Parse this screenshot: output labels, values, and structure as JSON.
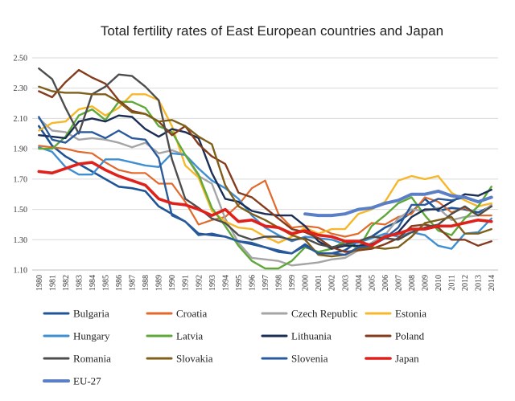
{
  "chart_data": {
    "type": "line",
    "title": "Total fertility rates of East European countries and Japan",
    "xlabel": "",
    "ylabel": "",
    "x": [
      "1980",
      "1981",
      "1982",
      "1983",
      "1984",
      "1985",
      "1986",
      "1987",
      "1988",
      "1989",
      "1990",
      "1991",
      "1992",
      "1993",
      "1994",
      "1995",
      "1996",
      "1997",
      "1998",
      "1999",
      "2000",
      "2001",
      "2002",
      "2003",
      "2004",
      "2005",
      "2006",
      "2007",
      "2008",
      "2009",
      "2010",
      "2011",
      "2012",
      "2013",
      "2014"
    ],
    "ylim": [
      1.1,
      2.5
    ],
    "yticks": [
      "1.10",
      "1.30",
      "1.50",
      "1.70",
      "1.90",
      "2.10",
      "2.30",
      "2.50"
    ],
    "grid": "horizontal",
    "legend_position": "bottom",
    "series": [
      {
        "name": "Bulgaria",
        "color": "#1f5597",
        "width": 2.6,
        "values": [
          2.05,
          1.92,
          1.85,
          1.8,
          1.75,
          1.7,
          1.65,
          1.64,
          1.62,
          1.52,
          1.47,
          1.42,
          1.34,
          1.33,
          1.32,
          1.29,
          1.27,
          1.25,
          1.22,
          1.21,
          1.27,
          1.21,
          1.21,
          1.23,
          1.29,
          1.32,
          1.38,
          1.42,
          1.48,
          1.57,
          1.49,
          1.51,
          1.5,
          1.48,
          1.52
        ]
      },
      {
        "name": "Croatia",
        "color": "#e0692b",
        "width": 2.2,
        "values": [
          1.92,
          1.91,
          1.9,
          1.88,
          1.87,
          1.81,
          1.76,
          1.74,
          1.74,
          1.67,
          1.67,
          1.55,
          1.4,
          1.43,
          1.45,
          1.53,
          1.64,
          1.69,
          1.47,
          1.38,
          1.39,
          1.38,
          1.34,
          1.32,
          1.34,
          1.41,
          1.4,
          1.45,
          1.47,
          1.58,
          1.55,
          1.48,
          1.51,
          1.46,
          1.46
        ]
      },
      {
        "name": "Czech Republic",
        "color": "#a5a5a5",
        "width": 2.4,
        "values": [
          2.1,
          2.02,
          2.01,
          1.96,
          1.97,
          1.96,
          1.94,
          1.91,
          1.94,
          1.87,
          1.89,
          1.86,
          1.72,
          1.67,
          1.44,
          1.28,
          1.18,
          1.17,
          1.16,
          1.13,
          1.14,
          1.15,
          1.17,
          1.18,
          1.23,
          1.28,
          1.33,
          1.44,
          1.5,
          1.49,
          1.51,
          1.43,
          1.45,
          1.46,
          1.53
        ]
      },
      {
        "name": "Estonia",
        "color": "#f7b72b",
        "width": 2.4,
        "values": [
          2.02,
          2.07,
          2.08,
          2.16,
          2.18,
          2.12,
          2.17,
          2.26,
          2.26,
          2.22,
          2.05,
          1.79,
          1.71,
          1.49,
          1.42,
          1.38,
          1.37,
          1.32,
          1.28,
          1.32,
          1.38,
          1.34,
          1.37,
          1.37,
          1.47,
          1.5,
          1.55,
          1.69,
          1.72,
          1.7,
          1.72,
          1.61,
          1.56,
          1.52,
          1.54
        ]
      },
      {
        "name": "Hungary",
        "color": "#3f8fd2",
        "width": 2.4,
        "values": [
          1.91,
          1.88,
          1.78,
          1.73,
          1.73,
          1.83,
          1.83,
          1.81,
          1.79,
          1.78,
          1.87,
          1.86,
          1.77,
          1.69,
          1.64,
          1.57,
          1.46,
          1.38,
          1.33,
          1.29,
          1.32,
          1.31,
          1.3,
          1.27,
          1.28,
          1.31,
          1.34,
          1.32,
          1.35,
          1.33,
          1.26,
          1.24,
          1.34,
          1.35,
          1.44
        ]
      },
      {
        "name": "Latvia",
        "color": "#5fa83a",
        "width": 2.4,
        "values": [
          1.9,
          1.9,
          1.98,
          2.12,
          2.16,
          2.09,
          2.21,
          2.21,
          2.17,
          2.05,
          2.01,
          1.86,
          1.73,
          1.51,
          1.39,
          1.26,
          1.16,
          1.11,
          1.11,
          1.16,
          1.25,
          1.22,
          1.24,
          1.29,
          1.24,
          1.39,
          1.46,
          1.54,
          1.58,
          1.46,
          1.36,
          1.33,
          1.44,
          1.52,
          1.65
        ]
      },
      {
        "name": "Lithuania",
        "color": "#1b2e55",
        "width": 2.4,
        "values": [
          1.99,
          1.98,
          1.97,
          2.08,
          2.1,
          2.08,
          2.12,
          2.11,
          2.03,
          1.98,
          2.03,
          2.01,
          1.97,
          1.74,
          1.57,
          1.55,
          1.49,
          1.47,
          1.46,
          1.46,
          1.39,
          1.29,
          1.24,
          1.26,
          1.26,
          1.27,
          1.31,
          1.35,
          1.45,
          1.5,
          1.5,
          1.55,
          1.6,
          1.59,
          1.63
        ]
      },
      {
        "name": "Poland",
        "color": "#843c1d",
        "width": 2.4,
        "values": [
          2.28,
          2.24,
          2.34,
          2.42,
          2.37,
          2.33,
          2.22,
          2.15,
          2.13,
          2.08,
          1.99,
          2.05,
          1.93,
          1.85,
          1.8,
          1.61,
          1.58,
          1.51,
          1.44,
          1.37,
          1.35,
          1.31,
          1.25,
          1.22,
          1.23,
          1.24,
          1.27,
          1.31,
          1.39,
          1.4,
          1.38,
          1.3,
          1.3,
          1.26,
          1.29
        ]
      },
      {
        "name": "Romania",
        "color": "#4d4d4d",
        "width": 2.4,
        "values": [
          2.43,
          2.36,
          2.17,
          2.0,
          2.26,
          2.31,
          2.39,
          2.38,
          2.31,
          2.22,
          1.83,
          1.57,
          1.51,
          1.44,
          1.41,
          1.33,
          1.3,
          1.32,
          1.32,
          1.3,
          1.31,
          1.27,
          1.25,
          1.27,
          1.29,
          1.32,
          1.31,
          1.3,
          1.35,
          1.38,
          1.4,
          1.47,
          1.52,
          1.46,
          1.52
        ]
      },
      {
        "name": "Slovakia",
        "color": "#7f5f1a",
        "width": 2.4,
        "values": [
          2.31,
          2.28,
          2.27,
          2.27,
          2.26,
          2.26,
          2.21,
          2.14,
          2.13,
          2.08,
          2.09,
          2.05,
          1.98,
          1.93,
          1.66,
          1.52,
          1.47,
          1.43,
          1.38,
          1.33,
          1.3,
          1.2,
          1.19,
          1.2,
          1.24,
          1.25,
          1.24,
          1.25,
          1.32,
          1.41,
          1.43,
          1.45,
          1.34,
          1.34,
          1.37
        ]
      },
      {
        "name": "Slovenia",
        "color": "#2a5a9c",
        "width": 2.4,
        "values": [
          2.11,
          1.96,
          1.94,
          2.01,
          2.01,
          1.97,
          2.02,
          1.97,
          1.96,
          1.84,
          1.46,
          1.42,
          1.33,
          1.34,
          1.32,
          1.29,
          1.28,
          1.25,
          1.23,
          1.21,
          1.26,
          1.21,
          1.21,
          1.2,
          1.25,
          1.26,
          1.31,
          1.38,
          1.53,
          1.53,
          1.57,
          1.56,
          1.58,
          1.55,
          1.58
        ]
      },
      {
        "name": "Japan",
        "color": "#e0201b",
        "width": 3.6,
        "values": [
          1.75,
          1.74,
          1.77,
          1.8,
          1.81,
          1.76,
          1.72,
          1.69,
          1.66,
          1.57,
          1.54,
          1.53,
          1.5,
          1.46,
          1.5,
          1.42,
          1.43,
          1.39,
          1.38,
          1.34,
          1.36,
          1.33,
          1.32,
          1.29,
          1.29,
          1.26,
          1.32,
          1.34,
          1.37,
          1.37,
          1.39,
          1.39,
          1.41,
          1.43,
          1.42
        ]
      },
      {
        "name": "EU-27",
        "color": "#5b7fc7",
        "width": 4.0,
        "values": [
          null,
          null,
          null,
          null,
          null,
          null,
          null,
          null,
          null,
          null,
          null,
          null,
          null,
          null,
          null,
          null,
          null,
          null,
          null,
          null,
          1.47,
          1.46,
          1.46,
          1.47,
          1.5,
          1.51,
          1.54,
          1.56,
          1.6,
          1.6,
          1.62,
          1.59,
          1.58,
          1.55,
          1.58
        ]
      }
    ]
  }
}
